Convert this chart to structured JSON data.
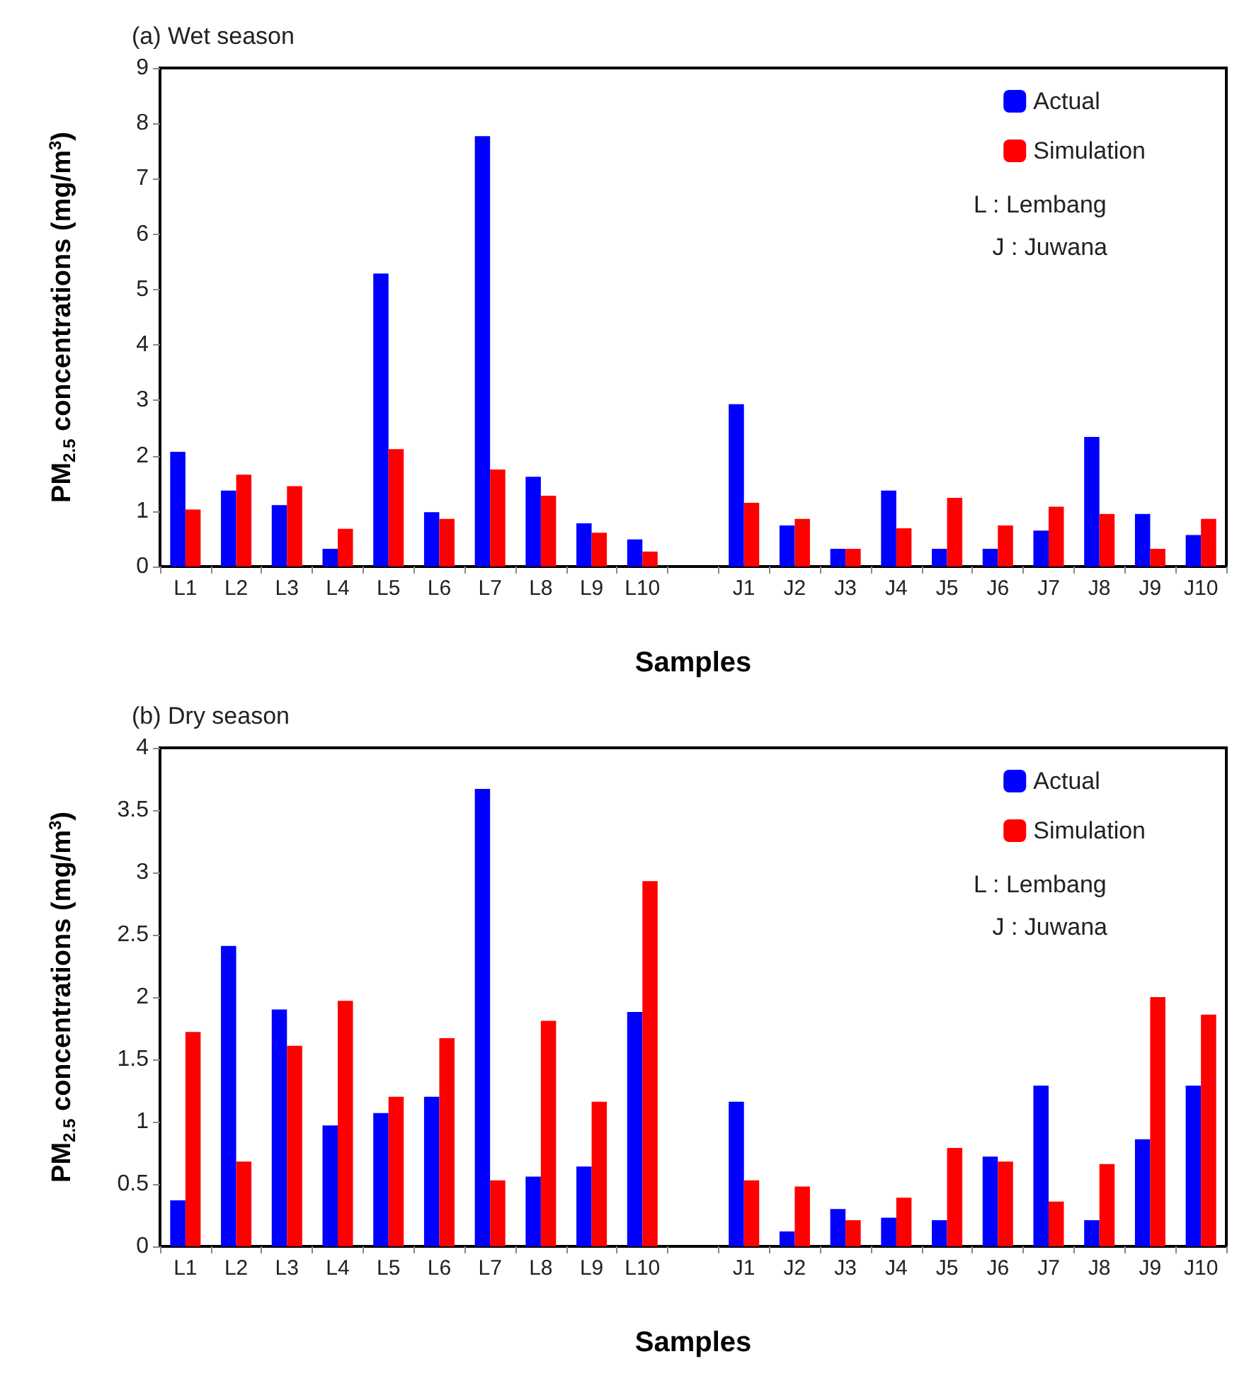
{
  "chart_data": [
    {
      "type": "bar",
      "title": "(a) Wet season",
      "xlabel": "Samples",
      "ylabel": "PM$_{2.5}$ concentrations (mg/m$^{3}$)",
      "categories": [
        "L1",
        "L2",
        "L3",
        "L4",
        "L5",
        "L6",
        "L7",
        "L8",
        "L9",
        "L10",
        null,
        "J1",
        "J2",
        "J3",
        "J4",
        "J5",
        "J6",
        "J7",
        "J8",
        "J9",
        "J10"
      ],
      "series": [
        {
          "name": "Actual",
          "color": "#0000ff",
          "values": [
            2.07,
            1.37,
            1.11,
            0.32,
            5.29,
            0.98,
            7.77,
            1.62,
            0.78,
            0.49,
            null,
            2.93,
            0.74,
            0.32,
            1.37,
            0.32,
            0.32,
            0.65,
            2.34,
            0.95,
            0.57
          ]
        },
        {
          "name": "Simulation",
          "color": "#ff0000",
          "values": [
            1.03,
            1.66,
            1.45,
            0.68,
            2.12,
            0.86,
            1.75,
            1.28,
            0.61,
            0.27,
            null,
            1.15,
            0.86,
            0.32,
            0.69,
            1.24,
            0.74,
            1.08,
            0.95,
            0.32,
            0.86
          ]
        }
      ],
      "ylim": [
        0,
        9
      ],
      "yticks": [
        0,
        1,
        2,
        3,
        4,
        5,
        6,
        7,
        8,
        9
      ],
      "grid": false,
      "legend": "top right",
      "annotations": [
        "L : Lembang",
        "J : Juwana"
      ]
    },
    {
      "type": "bar",
      "title": "(b) Dry season",
      "xlabel": "Samples",
      "ylabel": "PM$_{2.5}$ concentrations (mg/m$^{3}$)",
      "categories": [
        "L1",
        "L2",
        "L3",
        "L4",
        "L5",
        "L6",
        "L7",
        "L8",
        "L9",
        "L10",
        null,
        "J1",
        "J2",
        "J3",
        "J4",
        "J5",
        "J6",
        "J7",
        "J8",
        "J9",
        "J10"
      ],
      "series": [
        {
          "name": "Actual",
          "color": "#0000ff",
          "values": [
            0.37,
            2.41,
            1.9,
            0.97,
            1.07,
            1.2,
            3.67,
            0.56,
            0.64,
            1.88,
            null,
            1.16,
            0.12,
            0.3,
            0.23,
            0.21,
            0.72,
            1.29,
            0.21,
            0.86,
            1.29
          ]
        },
        {
          "name": "Simulation",
          "color": "#ff0000",
          "values": [
            1.72,
            0.68,
            1.61,
            1.97,
            1.2,
            1.67,
            0.53,
            1.81,
            1.16,
            2.93,
            null,
            0.53,
            0.48,
            0.21,
            0.39,
            0.79,
            0.68,
            0.36,
            0.66,
            2.0,
            1.86
          ]
        }
      ],
      "ylim": [
        0,
        4
      ],
      "yticks": [
        0,
        0.5,
        1,
        1.5,
        2,
        2.5,
        3,
        3.5,
        4
      ],
      "grid": false,
      "legend": "top right",
      "annotations": [
        "L : Lembang",
        "J : Juwana"
      ]
    }
  ]
}
